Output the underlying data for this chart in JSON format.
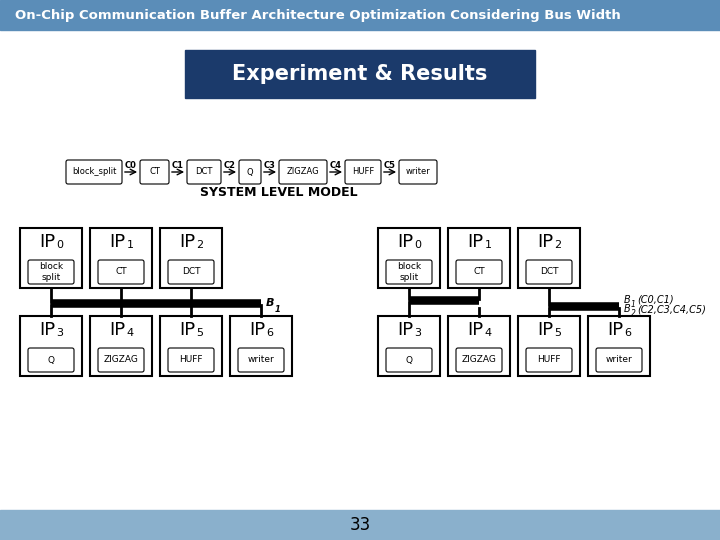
{
  "title_bar_text": "On-Chip Communication Buffer Architecture Optimization Considering Bus Width",
  "title_bar_color": "#5b8db8",
  "title_bar_text_color": "#ffffff",
  "subtitle_box_text": "Experiment & Results",
  "subtitle_box_color": "#1b3a6b",
  "subtitle_box_text_color": "#ffffff",
  "system_label": "SYSTEM LEVEL MODEL",
  "pipeline_nodes": [
    "block_split",
    "CT",
    "DCT",
    "Q",
    "ZIGZAG",
    "HUFF",
    "writer"
  ],
  "pipeline_labels": [
    "C0",
    "C1",
    "C2",
    "C3",
    "C4",
    "C5"
  ],
  "left_diagram": {
    "top_ips": [
      {
        "label": "IP",
        "sub": "0",
        "sublabel": "block\nsplit"
      },
      {
        "label": "IP",
        "sub": "1",
        "sublabel": "CT"
      },
      {
        "label": "IP",
        "sub": "2",
        "sublabel": "DCT"
      }
    ],
    "bottom_ips": [
      {
        "label": "IP",
        "sub": "3",
        "sublabel": "Q"
      },
      {
        "label": "IP",
        "sub": "4",
        "sublabel": "ZIGZAG"
      },
      {
        "label": "IP",
        "sub": "5",
        "sublabel": "HUFF"
      },
      {
        "label": "IP",
        "sub": "6",
        "sublabel": "writer"
      }
    ],
    "bus_label": "B",
    "bus_sub": "1"
  },
  "right_diagram": {
    "top_ips": [
      {
        "label": "IP",
        "sub": "0",
        "sublabel": "block\nsplit"
      },
      {
        "label": "IP",
        "sub": "1",
        "sublabel": "CT"
      },
      {
        "label": "IP",
        "sub": "2",
        "sublabel": "DCT"
      }
    ],
    "bottom_ips": [
      {
        "label": "IP",
        "sub": "3",
        "sublabel": "Q"
      },
      {
        "label": "IP",
        "sub": "4",
        "sublabel": "ZIGZAG"
      },
      {
        "label": "IP",
        "sub": "5",
        "sublabel": "HUFF"
      },
      {
        "label": "IP",
        "sub": "6",
        "sublabel": "writer"
      }
    ],
    "bus1_label": "B",
    "bus1_sub": "1",
    "bus1_suffix": "(C0,C1)",
    "bus2_label": "B",
    "bus2_sub": "2",
    "bus2_suffix": "(C2,C3,C4,C5)"
  },
  "footer_color": "#8ab0cc",
  "page_number": "33"
}
